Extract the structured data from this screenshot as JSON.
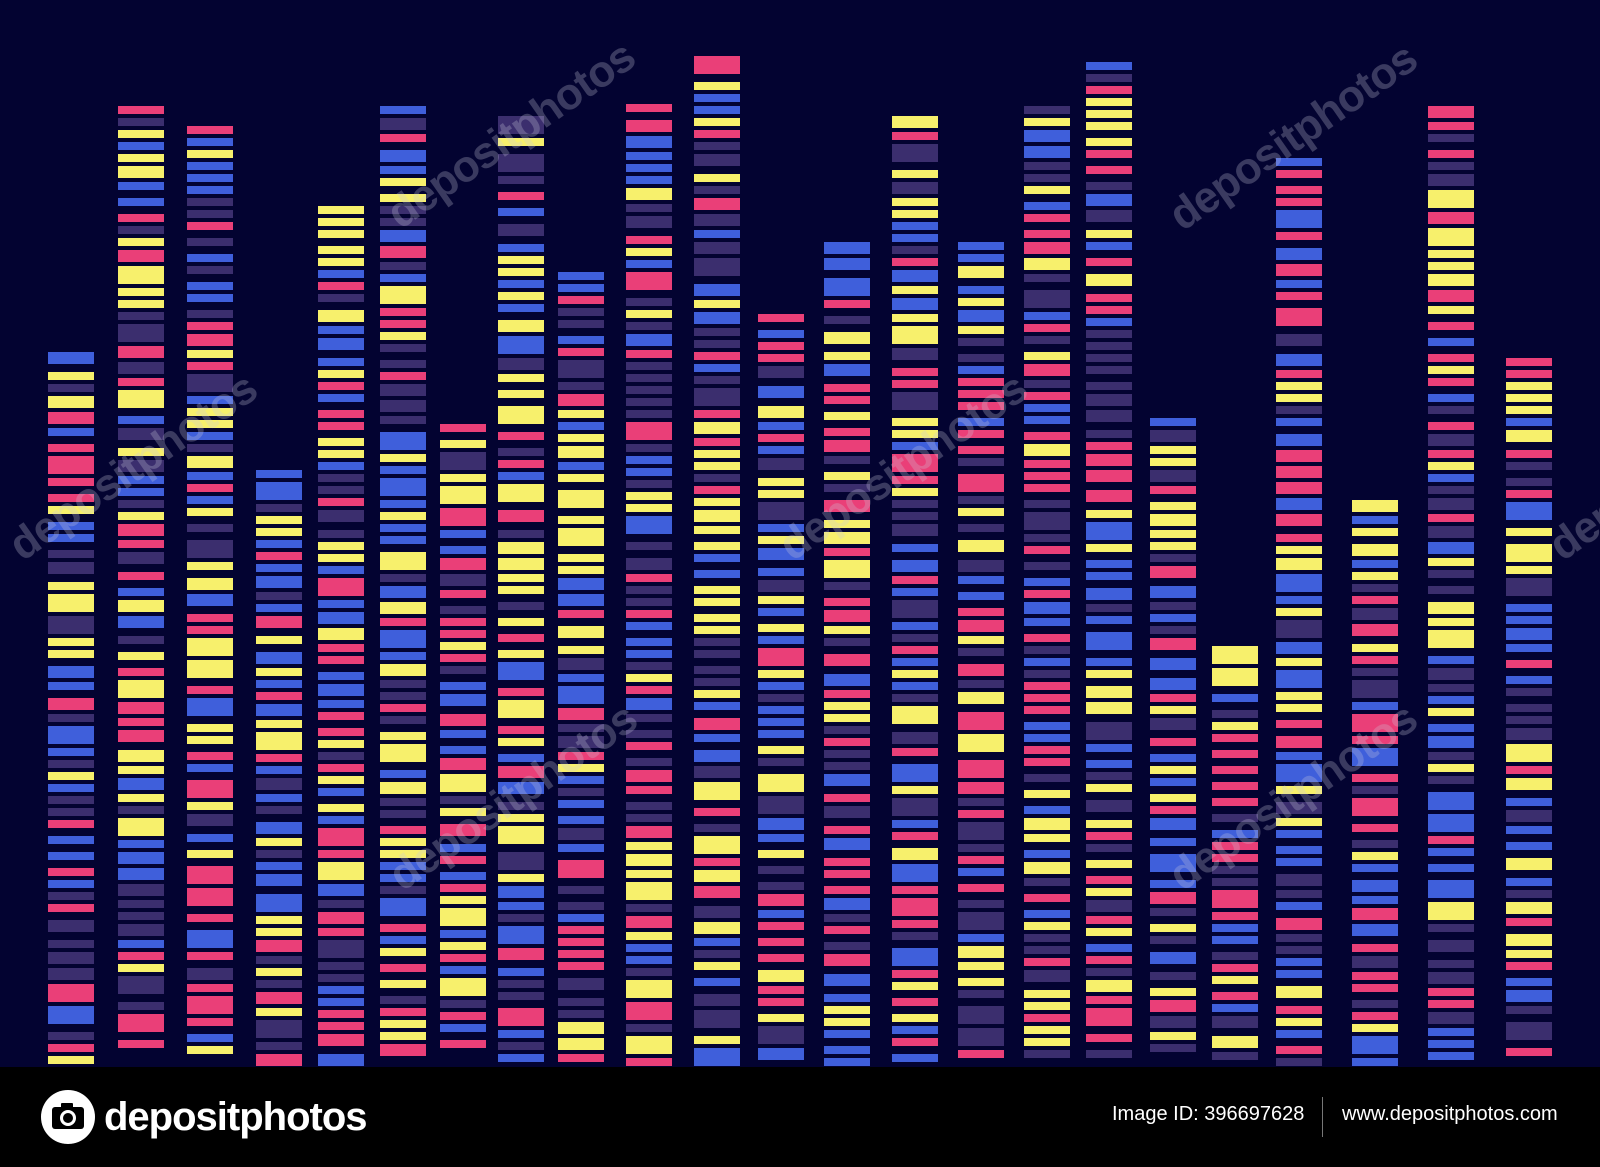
{
  "colors": {
    "background": "#030331",
    "pink": "#ea3f78",
    "yellow": "#f7f06c",
    "blue": "#3f5fdb",
    "purple": "#3b2e6e",
    "footer": "#000000"
  },
  "watermark": {
    "text": "depositphotos"
  },
  "footer": {
    "brand_name": "depositphotos",
    "brand_icon": "camera-icon",
    "image_id": "Image ID: 396697628",
    "url": "www.depositphotos.com"
  }
}
